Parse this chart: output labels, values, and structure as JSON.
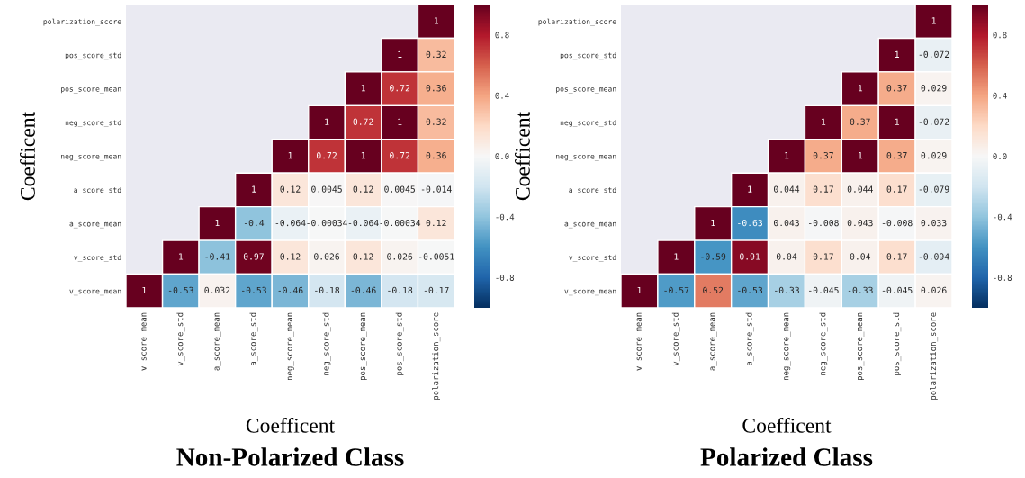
{
  "chart_data": [
    {
      "type": "heatmap",
      "title": "Non-Polarized Class",
      "xlabel": "Coefficent",
      "ylabel": "Coefficent",
      "categories": [
        "v_score_mean",
        "v_score_std",
        "a_score_mean",
        "a_score_std",
        "neg_score_mean",
        "neg_score_std",
        "pos_score_mean",
        "pos_score_std",
        "polarization_score"
      ],
      "y_categories": [
        "polarization_score",
        "pos_score_std",
        "pos_score_mean",
        "neg_score_std",
        "neg_score_mean",
        "a_score_std",
        "a_score_mean",
        "v_score_std",
        "v_score_mean"
      ],
      "cells": [
        [
          null,
          null,
          null,
          null,
          null,
          null,
          null,
          null,
          1
        ],
        [
          null,
          null,
          null,
          null,
          null,
          null,
          null,
          1,
          0.32
        ],
        [
          null,
          null,
          null,
          null,
          null,
          null,
          1,
          0.72,
          0.36
        ],
        [
          null,
          null,
          null,
          null,
          null,
          1,
          0.72,
          1,
          0.32
        ],
        [
          null,
          null,
          null,
          null,
          1,
          0.72,
          1,
          0.72,
          0.36
        ],
        [
          null,
          null,
          null,
          1,
          0.12,
          0.0045,
          0.12,
          0.0045,
          -0.014
        ],
        [
          null,
          null,
          1,
          -0.4,
          -0.064,
          -0.00034,
          -0.064,
          -0.00034,
          0.12
        ],
        [
          null,
          1,
          -0.41,
          0.97,
          0.12,
          0.026,
          0.12,
          0.026,
          -0.0051
        ],
        [
          1,
          -0.53,
          0.032,
          -0.53,
          -0.46,
          -0.18,
          -0.46,
          -0.18,
          -0.17
        ]
      ],
      "data_labels": true,
      "clim": [
        -1,
        1
      ],
      "cticks": [
        {
          "value": -0.8,
          "label": "-0.8"
        },
        {
          "value": -0.4,
          "label": "-0.4"
        },
        {
          "value": 0,
          "label": "0.0"
        },
        {
          "value": 0.4,
          "label": "0.4"
        },
        {
          "value": 0.8,
          "label": "0.8"
        }
      ]
    },
    {
      "type": "heatmap",
      "title": "Polarized Class",
      "xlabel": "Coefficent",
      "ylabel": "Coefficent",
      "categories": [
        "v_score_mean",
        "v_score_std",
        "a_score_mean",
        "a_score_std",
        "neg_score_mean",
        "neg_score_std",
        "pos_score_mean",
        "pos_score_std",
        "polarization_score"
      ],
      "y_categories": [
        "polarization_score",
        "pos_score_std",
        "pos_score_mean",
        "neg_score_std",
        "neg_score_mean",
        "a_score_std",
        "a_score_mean",
        "v_score_std",
        "v_score_mean"
      ],
      "cells": [
        [
          null,
          null,
          null,
          null,
          null,
          null,
          null,
          null,
          1
        ],
        [
          null,
          null,
          null,
          null,
          null,
          null,
          null,
          1,
          -0.072
        ],
        [
          null,
          null,
          null,
          null,
          null,
          null,
          1,
          0.37,
          0.029
        ],
        [
          null,
          null,
          null,
          null,
          null,
          1,
          0.37,
          1,
          -0.072
        ],
        [
          null,
          null,
          null,
          null,
          1,
          0.37,
          1,
          0.37,
          0.029
        ],
        [
          null,
          null,
          null,
          1,
          0.044,
          0.17,
          0.044,
          0.17,
          -0.079
        ],
        [
          null,
          null,
          1,
          -0.63,
          0.043,
          -0.008,
          0.043,
          -0.008,
          0.033
        ],
        [
          null,
          1,
          -0.59,
          0.91,
          0.04,
          0.17,
          0.04,
          0.17,
          -0.094
        ],
        [
          1,
          -0.57,
          0.52,
          -0.53,
          -0.33,
          -0.045,
          -0.33,
          -0.045,
          0.026
        ]
      ],
      "data_labels": true,
      "clim": [
        -1,
        1
      ],
      "cticks": [
        {
          "value": -0.8,
          "label": "-0.8"
        },
        {
          "value": -0.4,
          "label": "-0.4"
        },
        {
          "value": 0,
          "label": "0.0"
        },
        {
          "value": 0.4,
          "label": "0.4"
        },
        {
          "value": 0.8,
          "label": "0.8"
        }
      ]
    }
  ]
}
